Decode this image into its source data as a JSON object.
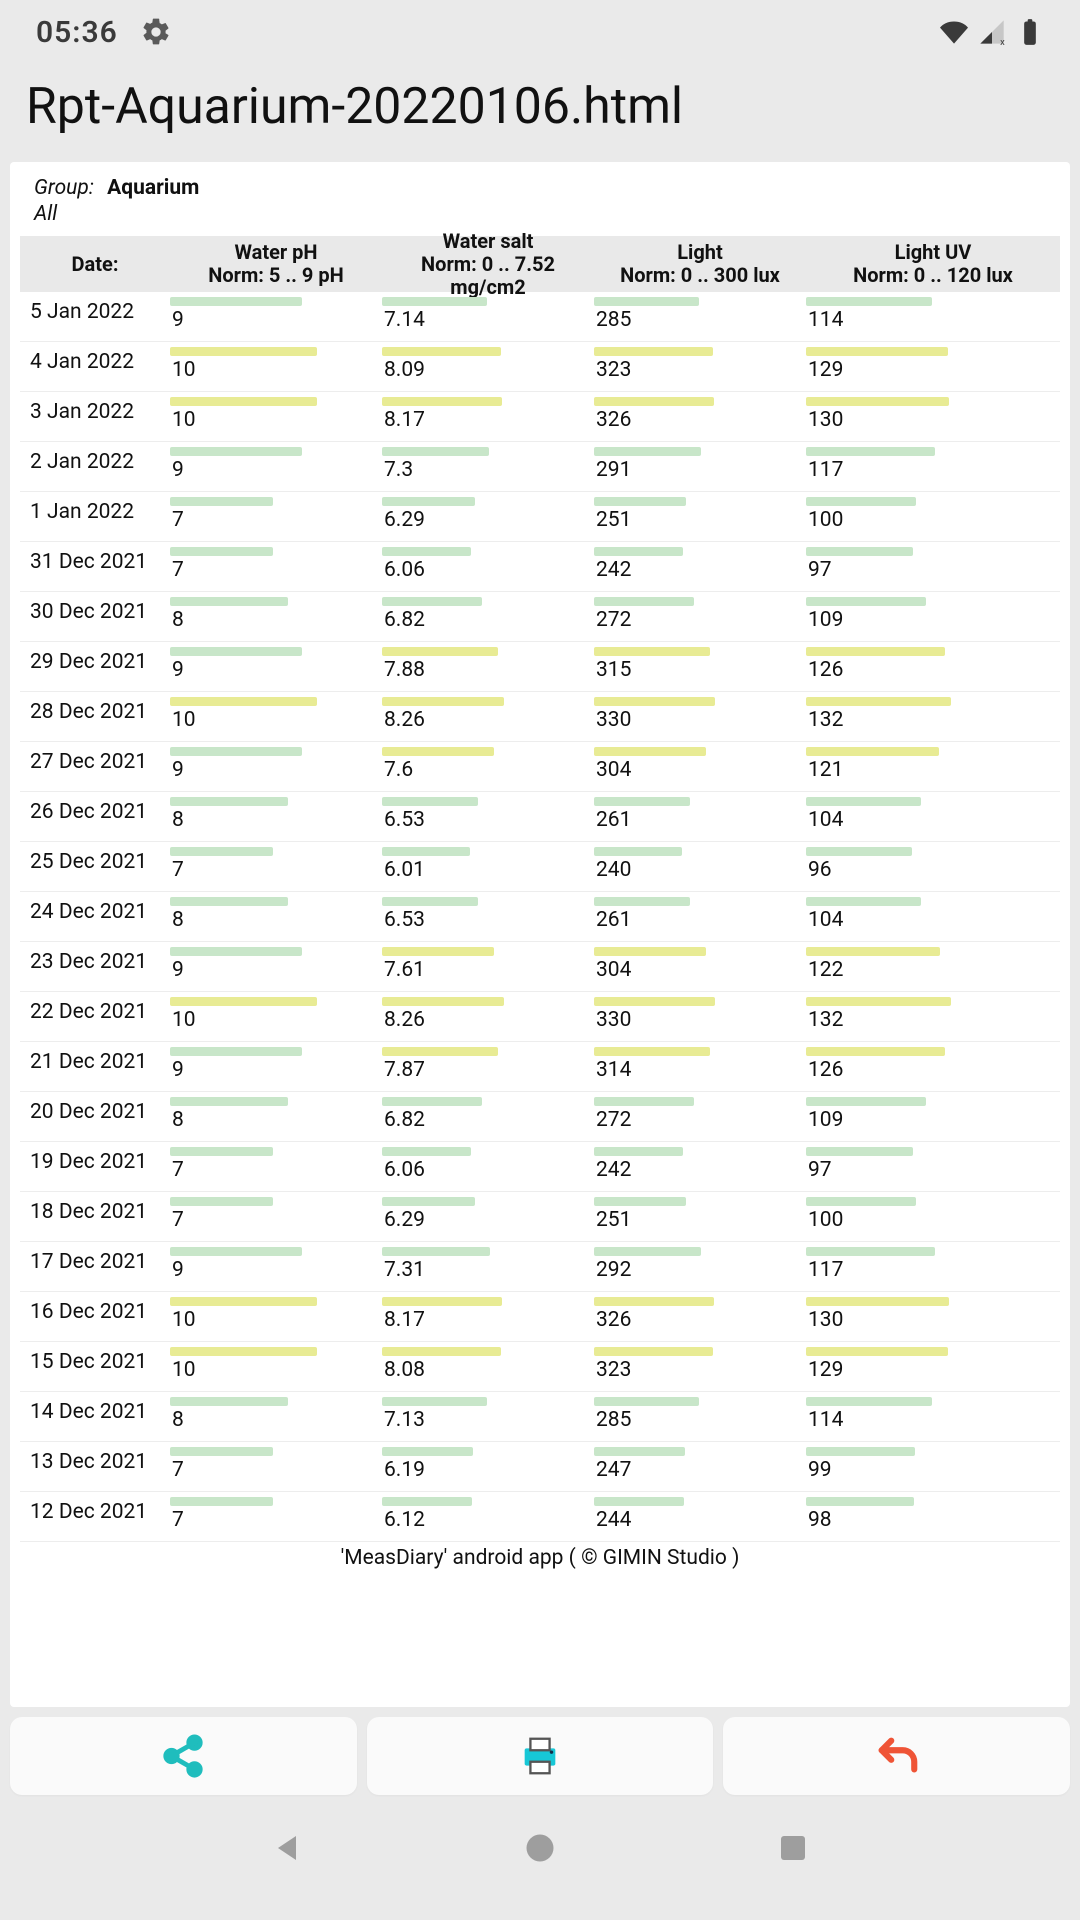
{
  "status": {
    "time": "05:36"
  },
  "page_title": "Rpt-Aquarium-20220106.html",
  "group": {
    "label": "Group:",
    "value": "Aquarium",
    "all": "All"
  },
  "header": {
    "date": "Date:"
  },
  "columns": [
    {
      "title": "Water pH",
      "norm": "Norm: 5 .. 9 pH",
      "max": 14
    },
    {
      "title": "Water salt",
      "norm": "Norm: 0 .. 7.52 mg/cm2",
      "max": 14
    },
    {
      "title": "Light",
      "norm": "Norm: 0 .. 300 lux",
      "max": 560
    },
    {
      "title": "Light UV",
      "norm": "Norm: 0 .. 120 lux",
      "max": 225
    }
  ],
  "colors": {
    "bar_green": "#c8e6c9",
    "bar_yellow": "#e8eb94",
    "row_divider": "#ededed",
    "header_bg": "#e9e9e9"
  },
  "thresholds": {
    "ph": 9,
    "salt": 7.52,
    "light": 300,
    "light_uv": 120
  },
  "rows": [
    {
      "date": "5 Jan 2022",
      "ph": 9,
      "salt": 7.14,
      "light": 285,
      "uv": 114
    },
    {
      "date": "4 Jan 2022",
      "ph": 10,
      "salt": 8.09,
      "light": 323,
      "uv": 129
    },
    {
      "date": "3 Jan 2022",
      "ph": 10,
      "salt": 8.17,
      "light": 326,
      "uv": 130
    },
    {
      "date": "2 Jan 2022",
      "ph": 9,
      "salt": 7.3,
      "light": 291,
      "uv": 117
    },
    {
      "date": "1 Jan 2022",
      "ph": 7,
      "salt": 6.29,
      "light": 251,
      "uv": 100
    },
    {
      "date": "31 Dec 2021",
      "ph": 7,
      "salt": 6.06,
      "light": 242,
      "uv": 97
    },
    {
      "date": "30 Dec 2021",
      "ph": 8,
      "salt": 6.82,
      "light": 272,
      "uv": 109
    },
    {
      "date": "29 Dec 2021",
      "ph": 9,
      "salt": 7.88,
      "light": 315,
      "uv": 126
    },
    {
      "date": "28 Dec 2021",
      "ph": 10,
      "salt": 8.26,
      "light": 330,
      "uv": 132
    },
    {
      "date": "27 Dec 2021",
      "ph": 9,
      "salt": 7.6,
      "light": 304,
      "uv": 121
    },
    {
      "date": "26 Dec 2021",
      "ph": 8,
      "salt": 6.53,
      "light": 261,
      "uv": 104
    },
    {
      "date": "25 Dec 2021",
      "ph": 7,
      "salt": 6.01,
      "light": 240,
      "uv": 96
    },
    {
      "date": "24 Dec 2021",
      "ph": 8,
      "salt": 6.53,
      "light": 261,
      "uv": 104
    },
    {
      "date": "23 Dec 2021",
      "ph": 9,
      "salt": 7.61,
      "light": 304,
      "uv": 122
    },
    {
      "date": "22 Dec 2021",
      "ph": 10,
      "salt": 8.26,
      "light": 330,
      "uv": 132
    },
    {
      "date": "21 Dec 2021",
      "ph": 9,
      "salt": 7.87,
      "light": 314,
      "uv": 126
    },
    {
      "date": "20 Dec 2021",
      "ph": 8,
      "salt": 6.82,
      "light": 272,
      "uv": 109
    },
    {
      "date": "19 Dec 2021",
      "ph": 7,
      "salt": 6.06,
      "light": 242,
      "uv": 97
    },
    {
      "date": "18 Dec 2021",
      "ph": 7,
      "salt": 6.29,
      "light": 251,
      "uv": 100
    },
    {
      "date": "17 Dec 2021",
      "ph": 9,
      "salt": 7.31,
      "light": 292,
      "uv": 117
    },
    {
      "date": "16 Dec 2021",
      "ph": 10,
      "salt": 8.17,
      "light": 326,
      "uv": 130
    },
    {
      "date": "15 Dec 2021",
      "ph": 10,
      "salt": 8.08,
      "light": 323,
      "uv": 129
    },
    {
      "date": "14 Dec 2021",
      "ph": 8,
      "salt": 7.13,
      "light": 285,
      "uv": 114
    },
    {
      "date": "13 Dec 2021",
      "ph": 7,
      "salt": 6.19,
      "light": 247,
      "uv": 99
    },
    {
      "date": "12 Dec 2021",
      "ph": 7,
      "salt": 6.12,
      "light": 244,
      "uv": 98
    }
  ],
  "footer": "'MeasDiary' android app ( © GIMIN Studio )"
}
